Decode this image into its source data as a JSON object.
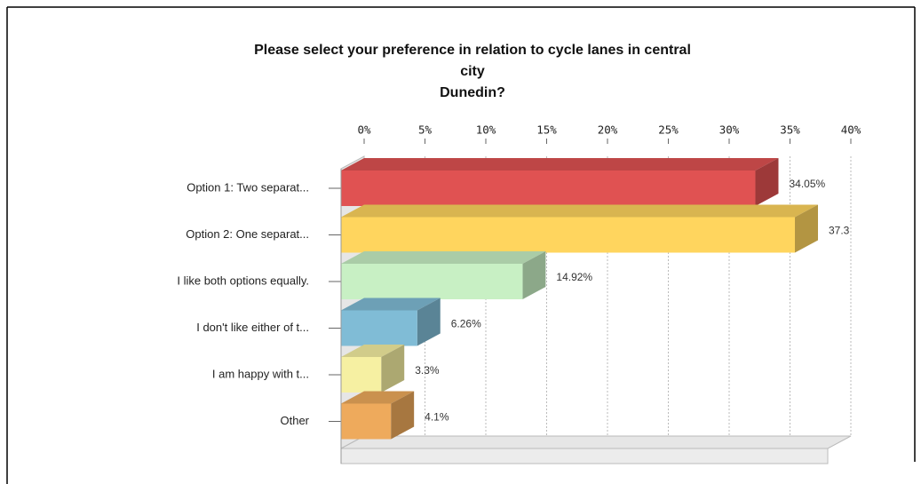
{
  "chart_data": {
    "type": "bar",
    "orientation": "horizontal",
    "title": [
      "Please select your preference in relation to cycle lanes in central",
      "city",
      "Dunedin?"
    ],
    "categories": [
      "Option 1: Two separat...",
      "Option 2: One separat...",
      "I like both options equally.",
      "I don't like either of t...",
      "I am happy with t...",
      "Other"
    ],
    "values": [
      34.05,
      37.3,
      14.92,
      6.26,
      3.3,
      4.1
    ],
    "value_labels": [
      "34.05%",
      "37.3",
      "14.92%",
      "6.26%",
      "3.3%",
      "4.1%"
    ],
    "colors": [
      "#e05252",
      "#ffd55e",
      "#c8f0c4",
      "#80bcd6",
      "#f6f0a2",
      "#eeaa5c"
    ],
    "xlim": [
      0,
      40
    ],
    "xticks": [
      {
        "value": 0,
        "label": "0%"
      },
      {
        "value": 5,
        "label": "5%"
      },
      {
        "value": 10,
        "label": "10%"
      },
      {
        "value": 15,
        "label": "15%"
      },
      {
        "value": 20,
        "label": "20%"
      },
      {
        "value": 25,
        "label": "25%"
      },
      {
        "value": 30,
        "label": "30%"
      },
      {
        "value": 35,
        "label": "35%"
      },
      {
        "value": 40,
        "label": "40%"
      }
    ],
    "grid": true
  }
}
